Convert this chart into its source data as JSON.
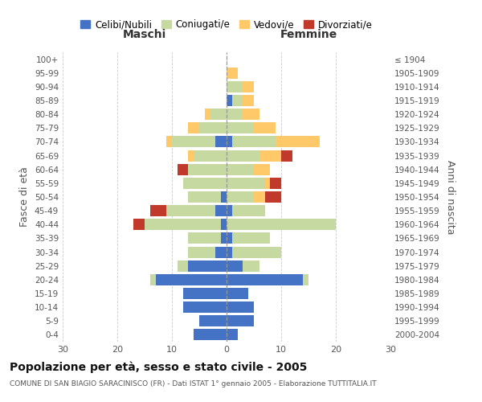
{
  "age_groups": [
    "0-4",
    "5-9",
    "10-14",
    "15-19",
    "20-24",
    "25-29",
    "30-34",
    "35-39",
    "40-44",
    "45-49",
    "50-54",
    "55-59",
    "60-64",
    "65-69",
    "70-74",
    "75-79",
    "80-84",
    "85-89",
    "90-94",
    "95-99",
    "100+"
  ],
  "birth_years": [
    "2000-2004",
    "1995-1999",
    "1990-1994",
    "1985-1989",
    "1980-1984",
    "1975-1979",
    "1970-1974",
    "1965-1969",
    "1960-1964",
    "1955-1959",
    "1950-1954",
    "1945-1949",
    "1940-1944",
    "1935-1939",
    "1930-1934",
    "1925-1929",
    "1920-1924",
    "1915-1919",
    "1910-1914",
    "1905-1909",
    "≤ 1904"
  ],
  "male_celibi": [
    6,
    5,
    8,
    8,
    13,
    7,
    2,
    1,
    1,
    2,
    1,
    0,
    0,
    0,
    2,
    0,
    0,
    0,
    0,
    0,
    0
  ],
  "male_coniugati": [
    0,
    0,
    0,
    0,
    1,
    2,
    5,
    6,
    14,
    9,
    6,
    8,
    7,
    6,
    8,
    5,
    3,
    0,
    0,
    0,
    0
  ],
  "male_vedovi": [
    0,
    0,
    0,
    0,
    0,
    0,
    0,
    0,
    0,
    0,
    0,
    0,
    0,
    1,
    1,
    2,
    1,
    0,
    0,
    0,
    0
  ],
  "male_divorziati": [
    0,
    0,
    0,
    0,
    0,
    0,
    0,
    0,
    2,
    3,
    0,
    0,
    2,
    0,
    0,
    0,
    0,
    0,
    0,
    0,
    0
  ],
  "female_nubili": [
    2,
    5,
    5,
    4,
    14,
    3,
    1,
    1,
    0,
    1,
    0,
    0,
    0,
    0,
    1,
    0,
    0,
    1,
    0,
    0,
    0
  ],
  "female_coniugate": [
    0,
    0,
    0,
    0,
    1,
    3,
    9,
    7,
    20,
    6,
    5,
    7,
    5,
    6,
    8,
    5,
    3,
    2,
    3,
    0,
    0
  ],
  "female_vedove": [
    0,
    0,
    0,
    0,
    0,
    0,
    0,
    0,
    0,
    0,
    2,
    1,
    3,
    4,
    8,
    4,
    3,
    2,
    2,
    2,
    0
  ],
  "female_divorziate": [
    0,
    0,
    0,
    0,
    0,
    0,
    0,
    0,
    0,
    0,
    3,
    2,
    0,
    2,
    0,
    0,
    0,
    0,
    0,
    0,
    0
  ],
  "color_celibi": "#4472c4",
  "color_coniugati": "#c5d9a0",
  "color_vedovi": "#ffc869",
  "color_divorziati": "#c0392b",
  "xlim": 30,
  "title": "Popolazione per età, sesso e stato civile - 2005",
  "subtitle": "COMUNE DI SAN BIAGIO SARACINISCO (FR) - Dati ISTAT 1° gennaio 2005 - Elaborazione TUTTITALIA.IT",
  "label_maschi": "Maschi",
  "label_femmine": "Femmine",
  "ylabel_left": "Fasce di età",
  "ylabel_right": "Anni di nascita",
  "legend_labels": [
    "Celibi/Nubili",
    "Coniugati/e",
    "Vedovi/e",
    "Divorziati/e"
  ],
  "bg_color": "#ffffff",
  "grid_color": "#cccccc"
}
